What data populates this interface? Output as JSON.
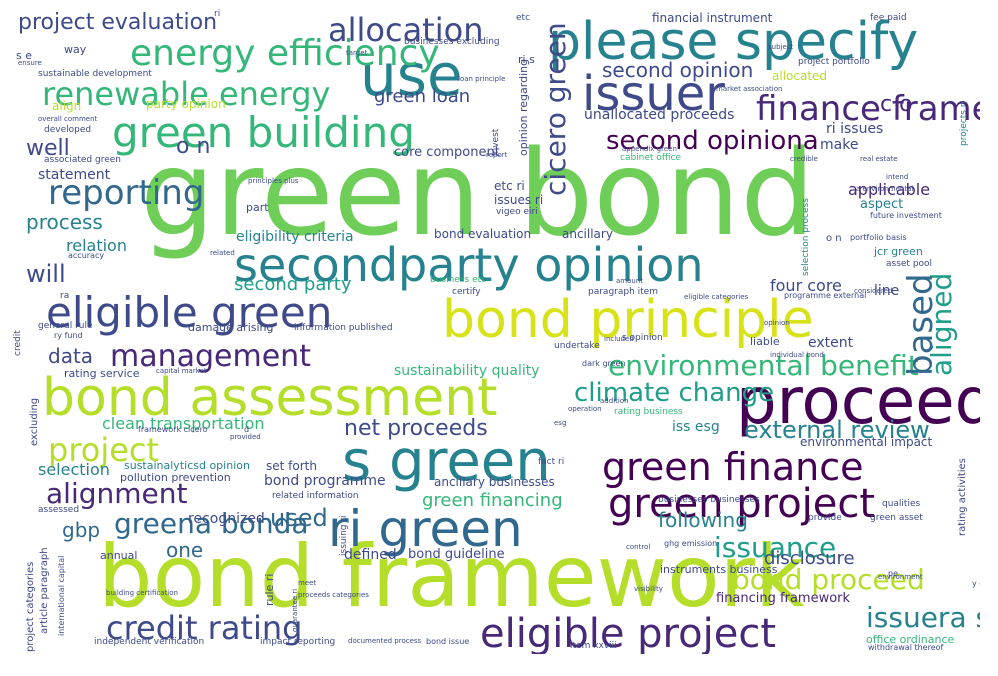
{
  "colors": {
    "background": "#ffffff",
    "palette": [
      "#440154",
      "#482878",
      "#3e4a89",
      "#31688e",
      "#26828e",
      "#1f9e89",
      "#35b779",
      "#6ece58",
      "#b5de2b",
      "#fde725"
    ]
  },
  "words": [
    {
      "text": "green bond",
      "color": "#6ece58"
    },
    {
      "text": "bond framework",
      "color": "#b5de2b"
    },
    {
      "text": "please specify",
      "color": "#26828e"
    },
    {
      "text": "secondparty opinion",
      "color": "#26828e"
    },
    {
      "text": "bond assessment",
      "color": "#b5de2b"
    },
    {
      "text": "bond principle",
      "color": "#d8e219"
    },
    {
      "text": "proceed",
      "color": "#440154"
    },
    {
      "text": "s green",
      "color": "#26828e"
    },
    {
      "text": "ri green",
      "color": "#31688e"
    },
    {
      "text": "use",
      "color": "#26828e"
    },
    {
      "text": "issuer",
      "color": "#3e4a89"
    },
    {
      "text": "green building",
      "color": "#35b779"
    },
    {
      "text": "eligible green",
      "color": "#3e4a89"
    },
    {
      "text": "eligible project",
      "color": "#482878"
    },
    {
      "text": "green finance",
      "color": "#440154"
    },
    {
      "text": "green project",
      "color": "#440154"
    },
    {
      "text": "credit rating",
      "color": "#3e4a89"
    },
    {
      "text": "renewable energy",
      "color": "#35b779"
    },
    {
      "text": "energy efficiency",
      "color": "#35b779"
    },
    {
      "text": "allocation",
      "color": "#3e4a89"
    },
    {
      "text": "management",
      "color": "#482878"
    },
    {
      "text": "environmental benefit",
      "color": "#35b779"
    },
    {
      "text": "finance framework",
      "color": "#482878"
    },
    {
      "text": "project",
      "color": "#b5de2b"
    },
    {
      "text": "alignment",
      "color": "#482878"
    },
    {
      "text": "bond proceed",
      "color": "#b5de2b"
    },
    {
      "text": "issuance",
      "color": "#1f9e89"
    },
    {
      "text": "second opiniona",
      "color": "#440154"
    },
    {
      "text": "climate change",
      "color": "#1f9e89"
    },
    {
      "text": "reporting",
      "color": "#31688e"
    },
    {
      "text": "will",
      "color": "#3e4a89"
    },
    {
      "text": "net proceeds",
      "color": "#3e4a89"
    },
    {
      "text": "external review",
      "color": "#26828e"
    },
    {
      "text": "greena bonda",
      "color": "#31688e"
    },
    {
      "text": "issuera s",
      "color": "#26828e"
    },
    {
      "text": "aligned",
      "color": "#1f9e89"
    },
    {
      "text": "based",
      "color": "#31688e"
    },
    {
      "text": "cicero green",
      "color": "#3e4a89"
    },
    {
      "text": "project evaluation",
      "color": "#3e4a89"
    },
    {
      "text": "second opinion",
      "color": "#3e4a89"
    },
    {
      "text": "green loan",
      "color": "#3e4a89"
    },
    {
      "text": "second party",
      "color": "#1f9e89"
    },
    {
      "text": "used",
      "color": "#31688e"
    },
    {
      "text": "green financing",
      "color": "#35b779"
    },
    {
      "text": "data",
      "color": "#3e4a89"
    },
    {
      "text": "process",
      "color": "#26828e"
    },
    {
      "text": "following",
      "color": "#26828e"
    },
    {
      "text": "o n",
      "color": "#3e4a89"
    },
    {
      "text": "c o",
      "color": "#482878"
    },
    {
      "text": "well",
      "color": "#3e4a89"
    },
    {
      "text": "one",
      "color": "#31688e"
    },
    {
      "text": "gbp",
      "color": "#31688e"
    },
    {
      "text": "financial instrument",
      "color": "#3e4a89"
    },
    {
      "text": "unallocated proceeds",
      "color": "#3e4a89"
    },
    {
      "text": "core component",
      "color": "#3e4a89"
    },
    {
      "text": "eligibility criteria",
      "color": "#26828e"
    },
    {
      "text": "bond evaluation",
      "color": "#3e4a89"
    },
    {
      "text": "ancillary",
      "color": "#3e4a89"
    },
    {
      "text": "four core",
      "color": "#3e4a89"
    },
    {
      "text": "clean transportation",
      "color": "#35b779"
    },
    {
      "text": "sustainability quality",
      "color": "#35b779"
    },
    {
      "text": "rating service",
      "color": "#3e4a89"
    },
    {
      "text": "relation",
      "color": "#26828e"
    },
    {
      "text": "selection",
      "color": "#26828e"
    },
    {
      "text": "statement",
      "color": "#3e4a89"
    },
    {
      "text": "bond programme",
      "color": "#3e4a89"
    },
    {
      "text": "bond guideline",
      "color": "#3e4a89"
    },
    {
      "text": "defined",
      "color": "#3e4a89"
    },
    {
      "text": "recognized",
      "color": "#3e4a89"
    },
    {
      "text": "disclosure",
      "color": "#3e4a89"
    },
    {
      "text": "applicable",
      "color": "#482878"
    },
    {
      "text": "aspect",
      "color": "#26828e"
    },
    {
      "text": "make",
      "color": "#3e4a89"
    },
    {
      "text": "extent",
      "color": "#3e4a89"
    },
    {
      "text": "line",
      "color": "#3e4a89"
    },
    {
      "text": "iss esg",
      "color": "#26828e"
    },
    {
      "text": "sustainalyticsd opinion",
      "color": "#26828e"
    },
    {
      "text": "pollution prevention",
      "color": "#3e4a89"
    },
    {
      "text": "set forth",
      "color": "#3e4a89"
    },
    {
      "text": "ancillary businesses",
      "color": "#3e4a89"
    },
    {
      "text": "financing framework",
      "color": "#482878"
    },
    {
      "text": "instruments business",
      "color": "#3e4a89"
    },
    {
      "text": "environmental impact",
      "color": "#3e4a89"
    },
    {
      "text": "office ordinance",
      "color": "#35b779"
    },
    {
      "text": "damage arising",
      "color": "#3e4a89"
    },
    {
      "text": "information published",
      "color": "#3e4a89"
    },
    {
      "text": "allocated",
      "color": "#b5de2b"
    },
    {
      "text": "ri issues",
      "color": "#3e4a89"
    },
    {
      "text": "etc ri",
      "color": "#3e4a89"
    },
    {
      "text": "issues ri",
      "color": "#3e4a89"
    },
    {
      "text": "part",
      "color": "#3e4a89"
    },
    {
      "text": "party opinion",
      "color": "#b5de2b"
    },
    {
      "text": "sustainable development",
      "color": "#3e4a89"
    },
    {
      "text": "businesses excluding",
      "color": "#3e4a89"
    },
    {
      "text": "align",
      "color": "#b5de2b"
    },
    {
      "text": "associated green",
      "color": "#3e4a89"
    },
    {
      "text": "developed",
      "color": "#3e4a89"
    },
    {
      "text": "annual",
      "color": "#3e4a89"
    },
    {
      "text": "way",
      "color": "#3e4a89"
    },
    {
      "text": "s e",
      "color": "#3e4a89"
    },
    {
      "text": "project portfolio",
      "color": "#3e4a89"
    },
    {
      "text": "fee paid",
      "color": "#3e4a89"
    },
    {
      "text": "cabinet office",
      "color": "#35b779"
    },
    {
      "text": "opinion regarding",
      "color": "#3e4a89"
    },
    {
      "text": "ri s",
      "color": "#3e4a89"
    },
    {
      "text": "jcr green",
      "color": "#26828e"
    },
    {
      "text": "provide",
      "color": "#3e4a89"
    },
    {
      "text": "green asset",
      "color": "#3e4a89"
    },
    {
      "text": "certify",
      "color": "#3e4a89"
    },
    {
      "text": "paragraph item",
      "color": "#3e4a89"
    },
    {
      "text": "s opinion",
      "color": "#3e4a89"
    },
    {
      "text": "undertake",
      "color": "#3e4a89"
    },
    {
      "text": "liable",
      "color": "#3e4a89"
    },
    {
      "text": "dark green",
      "color": "#3e4a89"
    },
    {
      "text": "rating business",
      "color": "#35b779"
    },
    {
      "text": "framework cicero",
      "color": "#3e4a89"
    },
    {
      "text": "fact ri",
      "color": "#3e4a89"
    },
    {
      "text": "related information",
      "color": "#3e4a89"
    },
    {
      "text": "businesses businesses",
      "color": "#3e4a89"
    },
    {
      "text": "business etc",
      "color": "#35b779"
    },
    {
      "text": "general rule",
      "color": "#3e4a89"
    },
    {
      "text": "ry fund",
      "color": "#3e4a89"
    },
    {
      "text": "assessed",
      "color": "#3e4a89"
    },
    {
      "text": "item xxviii",
      "color": "#3e4a89"
    },
    {
      "text": "bond issue",
      "color": "#3e4a89"
    },
    {
      "text": "impact reporting",
      "color": "#3e4a89"
    },
    {
      "text": "independent verification",
      "color": "#3e4a89"
    },
    {
      "text": "withdrawal thereof",
      "color": "#3e4a89"
    },
    {
      "text": "ghg emission",
      "color": "#3e4a89"
    },
    {
      "text": "qualities",
      "color": "#3e4a89"
    },
    {
      "text": "asset pool",
      "color": "#3e4a89"
    },
    {
      "text": "rule ri",
      "color": "#3e4a89"
    },
    {
      "text": "international capital",
      "color": "#3e4a89"
    },
    {
      "text": "project categories",
      "color": "#3e4a89"
    },
    {
      "text": "article paragraph",
      "color": "#3e4a89"
    },
    {
      "text": "rating activities",
      "color": "#3e4a89"
    },
    {
      "text": "excluding",
      "color": "#3e4a89"
    },
    {
      "text": "credit",
      "color": "#3e4a89"
    },
    {
      "text": "projects ri",
      "color": "#26828e"
    },
    {
      "text": "invest",
      "color": "#3e4a89"
    },
    {
      "text": "issuing ri",
      "color": "#3e4a89"
    },
    {
      "text": "selection process",
      "color": "#26828e"
    },
    {
      "text": "accuracy",
      "color": "#3e4a89"
    },
    {
      "text": "vigeo eiri",
      "color": "#3e4a89"
    },
    {
      "text": "future investment",
      "color": "#3e4a89"
    },
    {
      "text": "portfolio basis",
      "color": "#3e4a89"
    },
    {
      "text": "programme external",
      "color": "#3e4a89"
    },
    {
      "text": "capital market",
      "color": "#3e4a89"
    },
    {
      "text": "individual bond",
      "color": "#3e4a89"
    },
    {
      "text": "environment",
      "color": "#3e4a89"
    },
    {
      "text": "market association",
      "color": "#3e4a89"
    },
    {
      "text": "loan principle",
      "color": "#3e4a89"
    },
    {
      "text": "subject",
      "color": "#3e4a89"
    },
    {
      "text": "target",
      "color": "#3e4a89"
    },
    {
      "text": "ensure",
      "color": "#3e4a89"
    },
    {
      "text": "overall comment",
      "color": "#3e4a89"
    },
    {
      "text": "appendix green",
      "color": "#3e4a89"
    },
    {
      "text": "building certification",
      "color": "#3e4a89"
    },
    {
      "text": "proceeds categories",
      "color": "#3e4a89"
    },
    {
      "text": "documented process",
      "color": "#3e4a89"
    },
    {
      "text": "eligible categories",
      "color": "#3e4a89"
    },
    {
      "text": "included",
      "color": "#3e4a89"
    },
    {
      "text": "opinion",
      "color": "#3e4a89"
    },
    {
      "text": "control",
      "color": "#3e4a89"
    },
    {
      "text": "addition",
      "color": "#3e4a89"
    },
    {
      "text": "operation",
      "color": "#3e4a89"
    },
    {
      "text": "provided",
      "color": "#3e4a89"
    },
    {
      "text": "amount",
      "color": "#3e4a89"
    },
    {
      "text": "considered",
      "color": "#3e4a89"
    },
    {
      "text": "intend",
      "color": "#3e4a89"
    },
    {
      "text": "real estate",
      "color": "#3e4a89"
    },
    {
      "text": "credible",
      "color": "#3e4a89"
    },
    {
      "text": "principles plus",
      "color": "#3e4a89"
    },
    {
      "text": "related",
      "color": "#3e4a89"
    },
    {
      "text": "a environmental",
      "color": "#3e4a89"
    },
    {
      "text": "guarantee ri",
      "color": "#3e4a89"
    },
    {
      "text": "meet",
      "color": "#3e4a89"
    },
    {
      "text": "visibility",
      "color": "#3e4a89"
    },
    {
      "text": "ri",
      "color": "#3e4a89"
    },
    {
      "text": "etc",
      "color": "#3e4a89"
    },
    {
      "text": "o n",
      "color": "#3e4a89"
    },
    {
      "text": "y o",
      "color": "#3e4a89"
    },
    {
      "text": "report",
      "color": "#3e4a89"
    },
    {
      "text": "esg",
      "color": "#3e4a89"
    },
    {
      "text": "d",
      "color": "#3e4a89"
    },
    {
      "text": "ra",
      "color": "#3e4a89"
    },
    {
      "text": "pe",
      "color": "#3e4a89"
    }
  ]
}
